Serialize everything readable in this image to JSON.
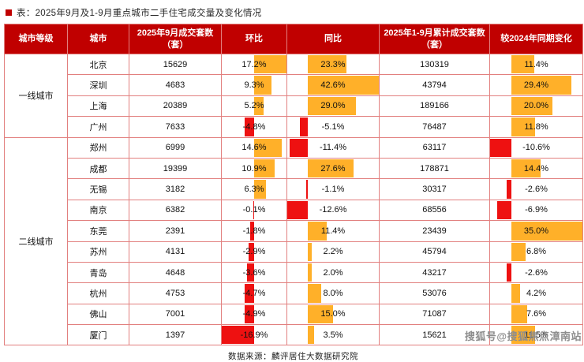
{
  "title": "表：2025年9月及1-9月重点城市二手住宅成交量及变化情况",
  "chart_data": {
    "type": "table",
    "title": "2025年9月及1-9月重点城市二手住宅成交量及变化情况",
    "columns": [
      "城市等级",
      "城市",
      "2025年9月成交套数（套）",
      "环比",
      "同比",
      "2025年1-9月累计成交套数（套）",
      "较2024年同期变化"
    ],
    "bar_columns": [
      "mom",
      "yoy",
      "change"
    ],
    "bar_style_note": "in-cell data bars: orange = positive, red = negative",
    "groups": [
      {
        "tier": "一线城市",
        "rows": [
          {
            "city": "北京",
            "sep_count": 15629,
            "mom": 17.2,
            "yoy": 23.3,
            "cum_count": 130319,
            "change": 11.4
          },
          {
            "city": "深圳",
            "sep_count": 4683,
            "mom": 9.3,
            "yoy": 42.6,
            "cum_count": 43794,
            "change": 29.4
          },
          {
            "city": "上海",
            "sep_count": 20389,
            "mom": 5.2,
            "yoy": 29.0,
            "cum_count": 189166,
            "change": 20.0
          },
          {
            "city": "广州",
            "sep_count": 7633,
            "mom": -4.8,
            "yoy": -5.1,
            "cum_count": 76487,
            "change": 11.8
          }
        ]
      },
      {
        "tier": "二线城市",
        "rows": [
          {
            "city": "郑州",
            "sep_count": 6999,
            "mom": 14.6,
            "yoy": -11.4,
            "cum_count": 63117,
            "change": -10.6
          },
          {
            "city": "成都",
            "sep_count": 19399,
            "mom": 10.9,
            "yoy": 27.6,
            "cum_count": 178871,
            "change": 14.4
          },
          {
            "city": "无锡",
            "sep_count": 3182,
            "mom": 6.3,
            "yoy": -1.1,
            "cum_count": 30317,
            "change": -2.6
          },
          {
            "city": "南京",
            "sep_count": 6382,
            "mom": -0.1,
            "yoy": -12.6,
            "cum_count": 68556,
            "change": -6.9
          },
          {
            "city": "东莞",
            "sep_count": 2391,
            "mom": -1.8,
            "yoy": 11.4,
            "cum_count": 23439,
            "change": 35.0
          },
          {
            "city": "苏州",
            "sep_count": 4131,
            "mom": -2.9,
            "yoy": 2.2,
            "cum_count": 45794,
            "change": 6.8
          },
          {
            "city": "青岛",
            "sep_count": 4648,
            "mom": -3.6,
            "yoy": 2.0,
            "cum_count": 43217,
            "change": -2.6
          },
          {
            "city": "杭州",
            "sep_count": 4753,
            "mom": -4.7,
            "yoy": 8.0,
            "cum_count": 53076,
            "change": 4.2
          },
          {
            "city": "佛山",
            "sep_count": 7001,
            "mom": -4.9,
            "yoy": 15.0,
            "cum_count": 71087,
            "change": 7.6
          },
          {
            "city": "厦门",
            "sep_count": 1397,
            "mom": -16.9,
            "yoy": 3.5,
            "cum_count": 15621,
            "change": 11.5
          }
        ]
      }
    ]
  },
  "footer": {
    "source": "数据来源：麟评居住大数据研究院"
  },
  "watermark": "搜狐号@搜狐焦点漳南站",
  "colors": {
    "header_bg": "#c00000",
    "grid_line": "#e2807f",
    "positive_bar": "#ffb029",
    "negative_bar": "#ee1111",
    "accent": "#c00000"
  }
}
